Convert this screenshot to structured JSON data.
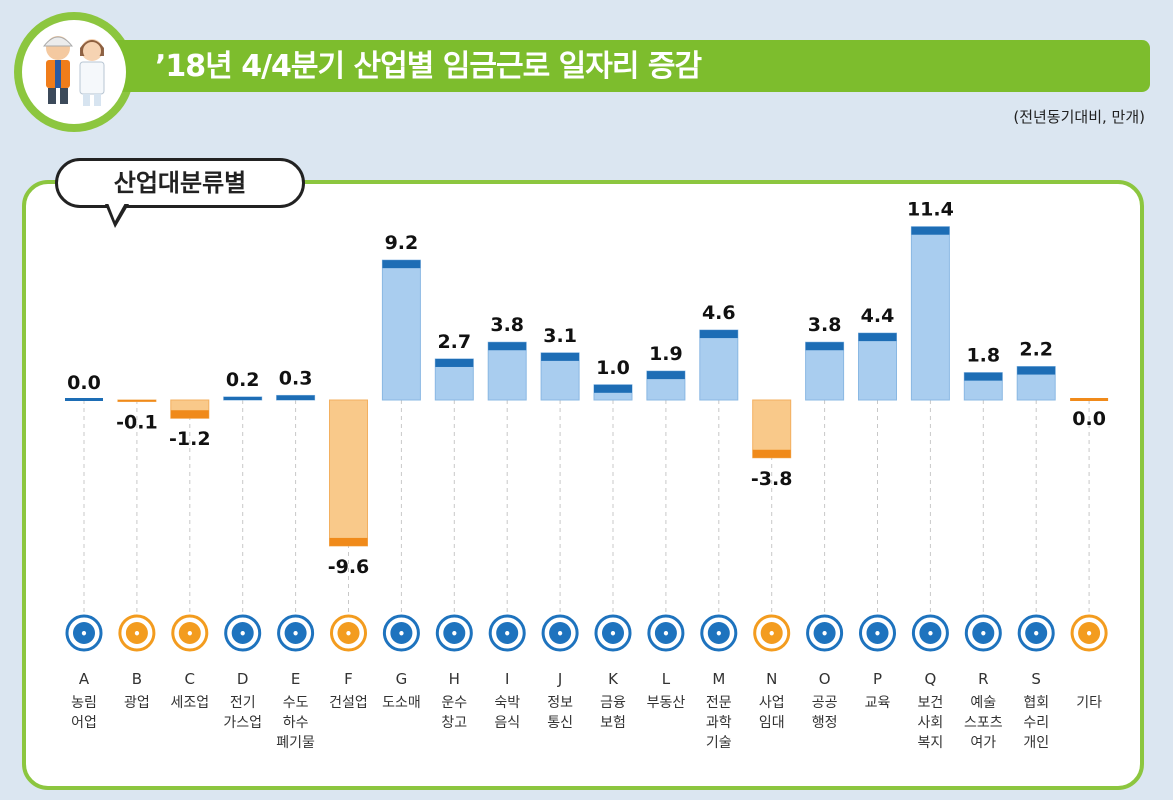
{
  "header": {
    "title": "’18년 4/4분기 산업별 임금근로 일자리 증감",
    "unit": "(전년동기대비, 만개)"
  },
  "panel": {
    "badge": "산업대분류별"
  },
  "chart_data": {
    "type": "bar",
    "categories": [
      {
        "code": "A",
        "name": [
          "농림",
          "어업"
        ],
        "icon": "wheat-icon",
        "value": 0.0,
        "label": "0.0"
      },
      {
        "code": "B",
        "name": [
          "광업"
        ],
        "icon": "mining-helmet-icon",
        "value": -0.1,
        "label": "-0.1"
      },
      {
        "code": "C",
        "name": [
          "세조업"
        ],
        "icon": "gears-icon",
        "value": -1.2,
        "label": "-1.2"
      },
      {
        "code": "D",
        "name": [
          "전기",
          "가스업"
        ],
        "icon": "lightning-icon",
        "value": 0.2,
        "label": "0.2"
      },
      {
        "code": "E",
        "name": [
          "수도",
          "하수",
          "폐기물"
        ],
        "icon": "water-tap-icon",
        "value": 0.3,
        "label": "0.3"
      },
      {
        "code": "F",
        "name": [
          "건설업"
        ],
        "icon": "excavator-icon",
        "value": -9.6,
        "label": "-9.6"
      },
      {
        "code": "G",
        "name": [
          "도소매"
        ],
        "icon": "shopping-basket-icon",
        "value": 9.2,
        "label": "9.2"
      },
      {
        "code": "H",
        "name": [
          "운수",
          "창고"
        ],
        "icon": "truck-icon",
        "value": 2.7,
        "label": "2.7"
      },
      {
        "code": "I",
        "name": [
          "숙박",
          "음식"
        ],
        "icon": "dining-icon",
        "value": 3.8,
        "label": "3.8"
      },
      {
        "code": "J",
        "name": [
          "정보",
          "통신"
        ],
        "icon": "smartphone-icon",
        "value": 3.1,
        "label": "3.1"
      },
      {
        "code": "K",
        "name": [
          "금융",
          "보험"
        ],
        "icon": "laptop-won-icon",
        "value": 1.0,
        "label": "1.0"
      },
      {
        "code": "L",
        "name": [
          "부동산"
        ],
        "icon": "house-won-icon",
        "value": 1.9,
        "label": "1.9"
      },
      {
        "code": "M",
        "name": [
          "전문",
          "과학",
          "기술"
        ],
        "icon": "flask-icon",
        "value": 4.6,
        "label": "4.6"
      },
      {
        "code": "N",
        "name": [
          "사업",
          "임대"
        ],
        "icon": "people-icon",
        "value": -3.8,
        "label": "-3.8"
      },
      {
        "code": "O",
        "name": [
          "공공",
          "행정"
        ],
        "icon": "scroll-icon",
        "value": 3.8,
        "label": "3.8"
      },
      {
        "code": "P",
        "name": [
          "교육"
        ],
        "icon": "graduation-cap-icon",
        "value": 4.4,
        "label": "4.4"
      },
      {
        "code": "Q",
        "name": [
          "보건",
          "사회",
          "복지"
        ],
        "icon": "medical-kit-icon",
        "value": 11.4,
        "label": "11.4"
      },
      {
        "code": "R",
        "name": [
          "예술",
          "스포츠",
          "여가"
        ],
        "icon": "palette-icon",
        "value": 1.8,
        "label": "1.8"
      },
      {
        "code": "S",
        "name": [
          "협회",
          "수리",
          "개인"
        ],
        "icon": "group-icon",
        "value": 2.2,
        "label": "2.2"
      },
      {
        "code": "",
        "name": [
          "기타"
        ],
        "icon": "exit-door-icon",
        "value": 0.0,
        "label": "0.0"
      }
    ],
    "colors": {
      "positive": "#a9cdef",
      "positive_cap": "#1d6db5",
      "negative": "#f9c98a",
      "negative_cap": "#f08a1a",
      "icon_blue": "#1e73be",
      "icon_orange": "#f39c1f"
    }
  }
}
